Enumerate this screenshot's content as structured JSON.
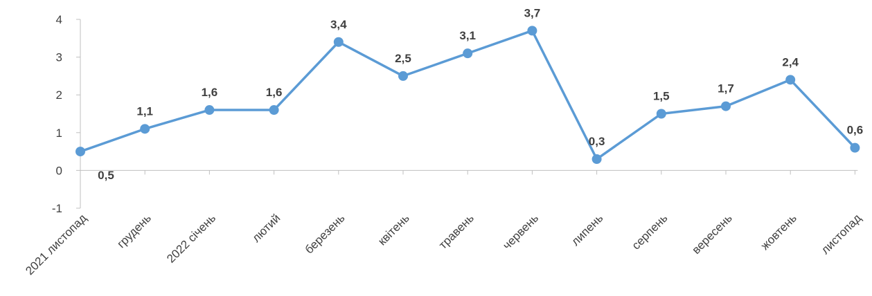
{
  "chart_data": {
    "type": "line",
    "categories": [
      "2021 листопад",
      "грудень",
      "2022 січень",
      "лютий",
      "березень",
      "квітень",
      "травень",
      "червень",
      "липень",
      "серпень",
      "вересень",
      "жовтень",
      "листопад"
    ],
    "series": [
      {
        "values": [
          0.5,
          1.1,
          1.6,
          1.6,
          3.4,
          2.5,
          3.1,
          3.7,
          0.3,
          1.5,
          1.7,
          2.4,
          0.6
        ],
        "data_labels": [
          "0,5",
          "1,1",
          "1,6",
          "1,6",
          "3,4",
          "2,5",
          "3,1",
          "3,7",
          "0,3",
          "1,5",
          "1,7",
          "2,4",
          "0,6"
        ],
        "color": "#5b9bd5"
      }
    ],
    "y_ticks": [
      "4",
      "3",
      "2",
      "1",
      "0",
      "-1"
    ],
    "ylim": [
      -1,
      4
    ],
    "title": "",
    "xlabel": "",
    "ylabel": "",
    "grid": false,
    "legend": "none",
    "axis_color": "#bfbfbf",
    "text_color": "#404040"
  }
}
